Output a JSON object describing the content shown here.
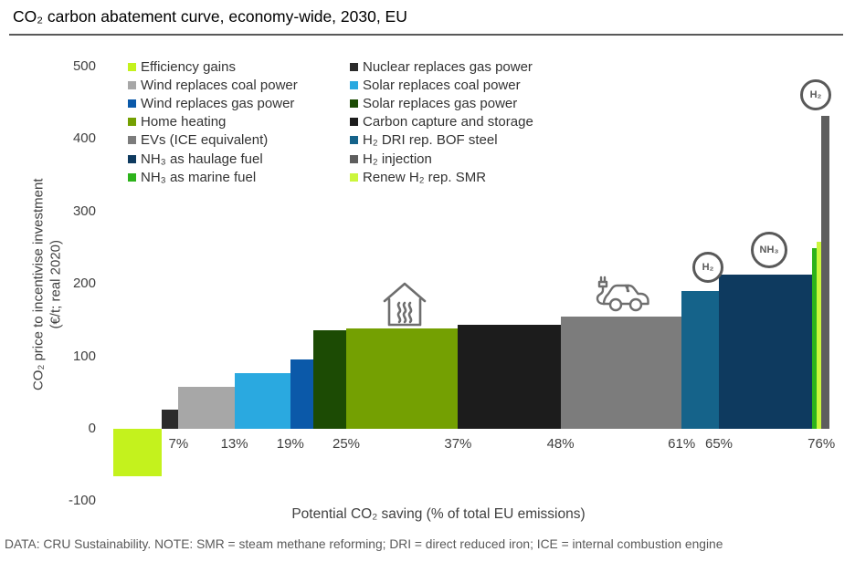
{
  "title": "CO₂ carbon abatement curve, economy-wide, 2030, EU",
  "footer": "DATA: CRU Sustainability. NOTE: SMR = steam methane reforming; DRI = direct reduced iron; ICE = internal combustion engine",
  "chart_data": {
    "type": "bar",
    "variant": "marginal-abatement-cost-curve",
    "title": "CO₂ carbon abatement curve, economy-wide, 2030, EU",
    "xlabel": "Potential CO₂ saving (% of total EU emissions)",
    "ylabel": "CO₂ price to incentivise investment (€/t; real 2020)",
    "ylabel_line1": "CO₂ price to incentivise investment",
    "ylabel_line2": "(€/t; real 2020)",
    "ylim": [
      -100,
      500
    ],
    "xlim_pct": [
      0,
      77
    ],
    "grid": false,
    "y_ticks": [
      500,
      400,
      300,
      200,
      100,
      0,
      -100
    ],
    "x_tick_labels_pct": [
      7,
      13,
      19,
      25,
      37,
      48,
      61,
      65,
      76
    ],
    "segments": [
      {
        "name": "Efficiency gains",
        "start_pct": 0,
        "end_pct": 5.2,
        "value": -65,
        "color": "#c4f21d"
      },
      {
        "name": "Nuclear replaces gas power",
        "start_pct": 5.2,
        "end_pct": 7,
        "value": 27,
        "color": "#2b2b2b"
      },
      {
        "name": "Wind replaces coal power",
        "start_pct": 7,
        "end_pct": 13,
        "value": 58,
        "color": "#a7a7a7"
      },
      {
        "name": "Solar replaces coal power",
        "start_pct": 13,
        "end_pct": 19,
        "value": 77,
        "color": "#2aa9e0"
      },
      {
        "name": "Wind replaces gas power",
        "start_pct": 19,
        "end_pct": 21.5,
        "value": 96,
        "color": "#0b59a9"
      },
      {
        "name": "Solar replaces gas power",
        "start_pct": 21.5,
        "end_pct": 25,
        "value": 136,
        "color": "#1c4b04"
      },
      {
        "name": "Home heating",
        "start_pct": 25,
        "end_pct": 37,
        "value": 138,
        "color": "#74a002"
      },
      {
        "name": "Carbon capture and storage",
        "start_pct": 37,
        "end_pct": 48,
        "value": 144,
        "color": "#1c1c1c"
      },
      {
        "name": "EVs (ICE equivalent)",
        "start_pct": 48,
        "end_pct": 61,
        "value": 155,
        "color": "#7c7c7c"
      },
      {
        "name": "H₂ DRI rep. BOF steel",
        "start_pct": 61,
        "end_pct": 65,
        "value": 190,
        "color": "#15638a"
      },
      {
        "name": "NH₃ as haulage fuel",
        "start_pct": 65,
        "end_pct": 75,
        "value": 213,
        "color": "#0e3a5f"
      },
      {
        "name": "NH₃ as marine fuel",
        "start_pct": 75,
        "end_pct": 75.5,
        "value": 250,
        "color": "#2db31b"
      },
      {
        "name": "Renew H₂ rep. SMR",
        "start_pct": 75.5,
        "end_pct": 76,
        "value": 258,
        "color": "#cbf63c"
      },
      {
        "name": "H₂ injection",
        "start_pct": 76,
        "end_pct": 76.9,
        "value": 432,
        "color": "#5e5e5e"
      }
    ],
    "markers": [
      {
        "type": "home-heating-icon",
        "above": "Home heating"
      },
      {
        "type": "ev-car-icon",
        "above": "EVs (ICE equivalent)"
      },
      {
        "type": "badge",
        "label": "H₂",
        "above": "H₂ DRI rep. BOF steel"
      },
      {
        "type": "badge",
        "label": "NH₃",
        "above": "NH₃ as haulage fuel"
      },
      {
        "type": "badge",
        "label": "H₂",
        "above": "H₂ injection"
      }
    ],
    "legend_position": "top-left-two-columns"
  },
  "legend": {
    "columns": [
      [
        {
          "label": "Efficiency gains",
          "color": "#c4f21d"
        },
        {
          "label": "Wind replaces coal power",
          "color": "#a7a7a7"
        },
        {
          "label": "Wind replaces gas power",
          "color": "#0b59a9"
        },
        {
          "label": "Home heating",
          "color": "#74a002"
        },
        {
          "label": "EVs (ICE equivalent)",
          "color": "#7c7c7c"
        },
        {
          "label": "NH₃ as haulage fuel",
          "color": "#0e3a5f"
        },
        {
          "label": "NH₃ as marine fuel",
          "color": "#2db31b"
        }
      ],
      [
        {
          "label": "Nuclear replaces gas power",
          "color": "#2b2b2b"
        },
        {
          "label": "Solar replaces coal power",
          "color": "#2aa9e0"
        },
        {
          "label": "Solar replaces gas power",
          "color": "#1c4b04"
        },
        {
          "label": "Carbon capture and storage",
          "color": "#1c1c1c"
        },
        {
          "label": "H₂ DRI rep. BOF steel",
          "color": "#15638a"
        },
        {
          "label": "H₂ injection",
          "color": "#5e5e5e"
        },
        {
          "label": "Renew H₂ rep. SMR",
          "color": "#cbf63c"
        }
      ]
    ]
  },
  "colors": {
    "icon_gray": "#595959",
    "axis_text": "#404040",
    "footer_text": "#595959",
    "title_rule": "#595959"
  }
}
